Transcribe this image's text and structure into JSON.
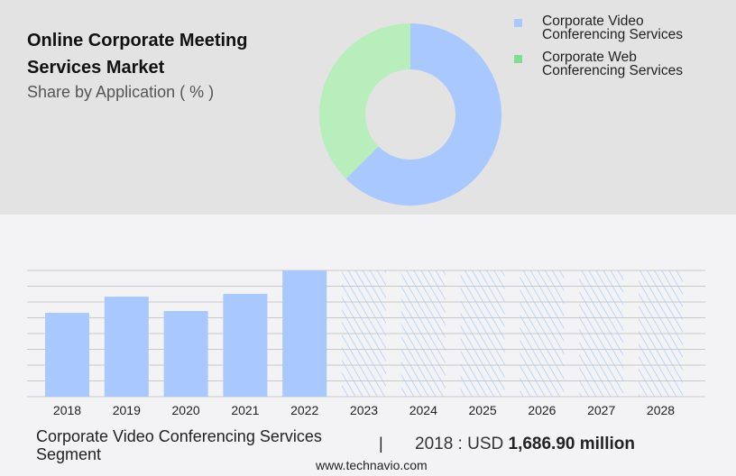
{
  "header": {
    "title": "Online Corporate Meeting Services Market",
    "subtitle": "Share by Application ( % )"
  },
  "colors": {
    "video": "#a8c8fe",
    "web": "#b8eebb",
    "web_legend": "#7ee08f",
    "grid": "#c8c8c8"
  },
  "chart_data": [
    {
      "type": "pie",
      "title": "Share by Application ( % )",
      "legend": "top-right",
      "slices": [
        {
          "label": "Corporate Video Conferencing Services",
          "value": 62.5
        },
        {
          "label": "Corporate Web Conferencing Services",
          "value": 37.5
        }
      ]
    },
    {
      "type": "bar",
      "categories": [
        "2018",
        "2019",
        "2020",
        "2021",
        "2022",
        "2023",
        "2024",
        "2025",
        "2026",
        "2027",
        "2028"
      ],
      "values": [
        1686.9,
        2013,
        1723,
        2068,
        2540,
        null,
        null,
        null,
        null,
        null,
        null
      ],
      "forecast_years": [
        "2023",
        "2024",
        "2025",
        "2026",
        "2027",
        "2028"
      ],
      "ylim": [
        0,
        2540
      ],
      "grid": true,
      "xlabel": "",
      "ylabel": ""
    }
  ],
  "footer": {
    "segment": "Corporate Video Conferencing Services Segment",
    "separator": "|",
    "value_prefix": "2018 : USD",
    "value": "1,686.90 million",
    "site": "www.technavio.com"
  }
}
